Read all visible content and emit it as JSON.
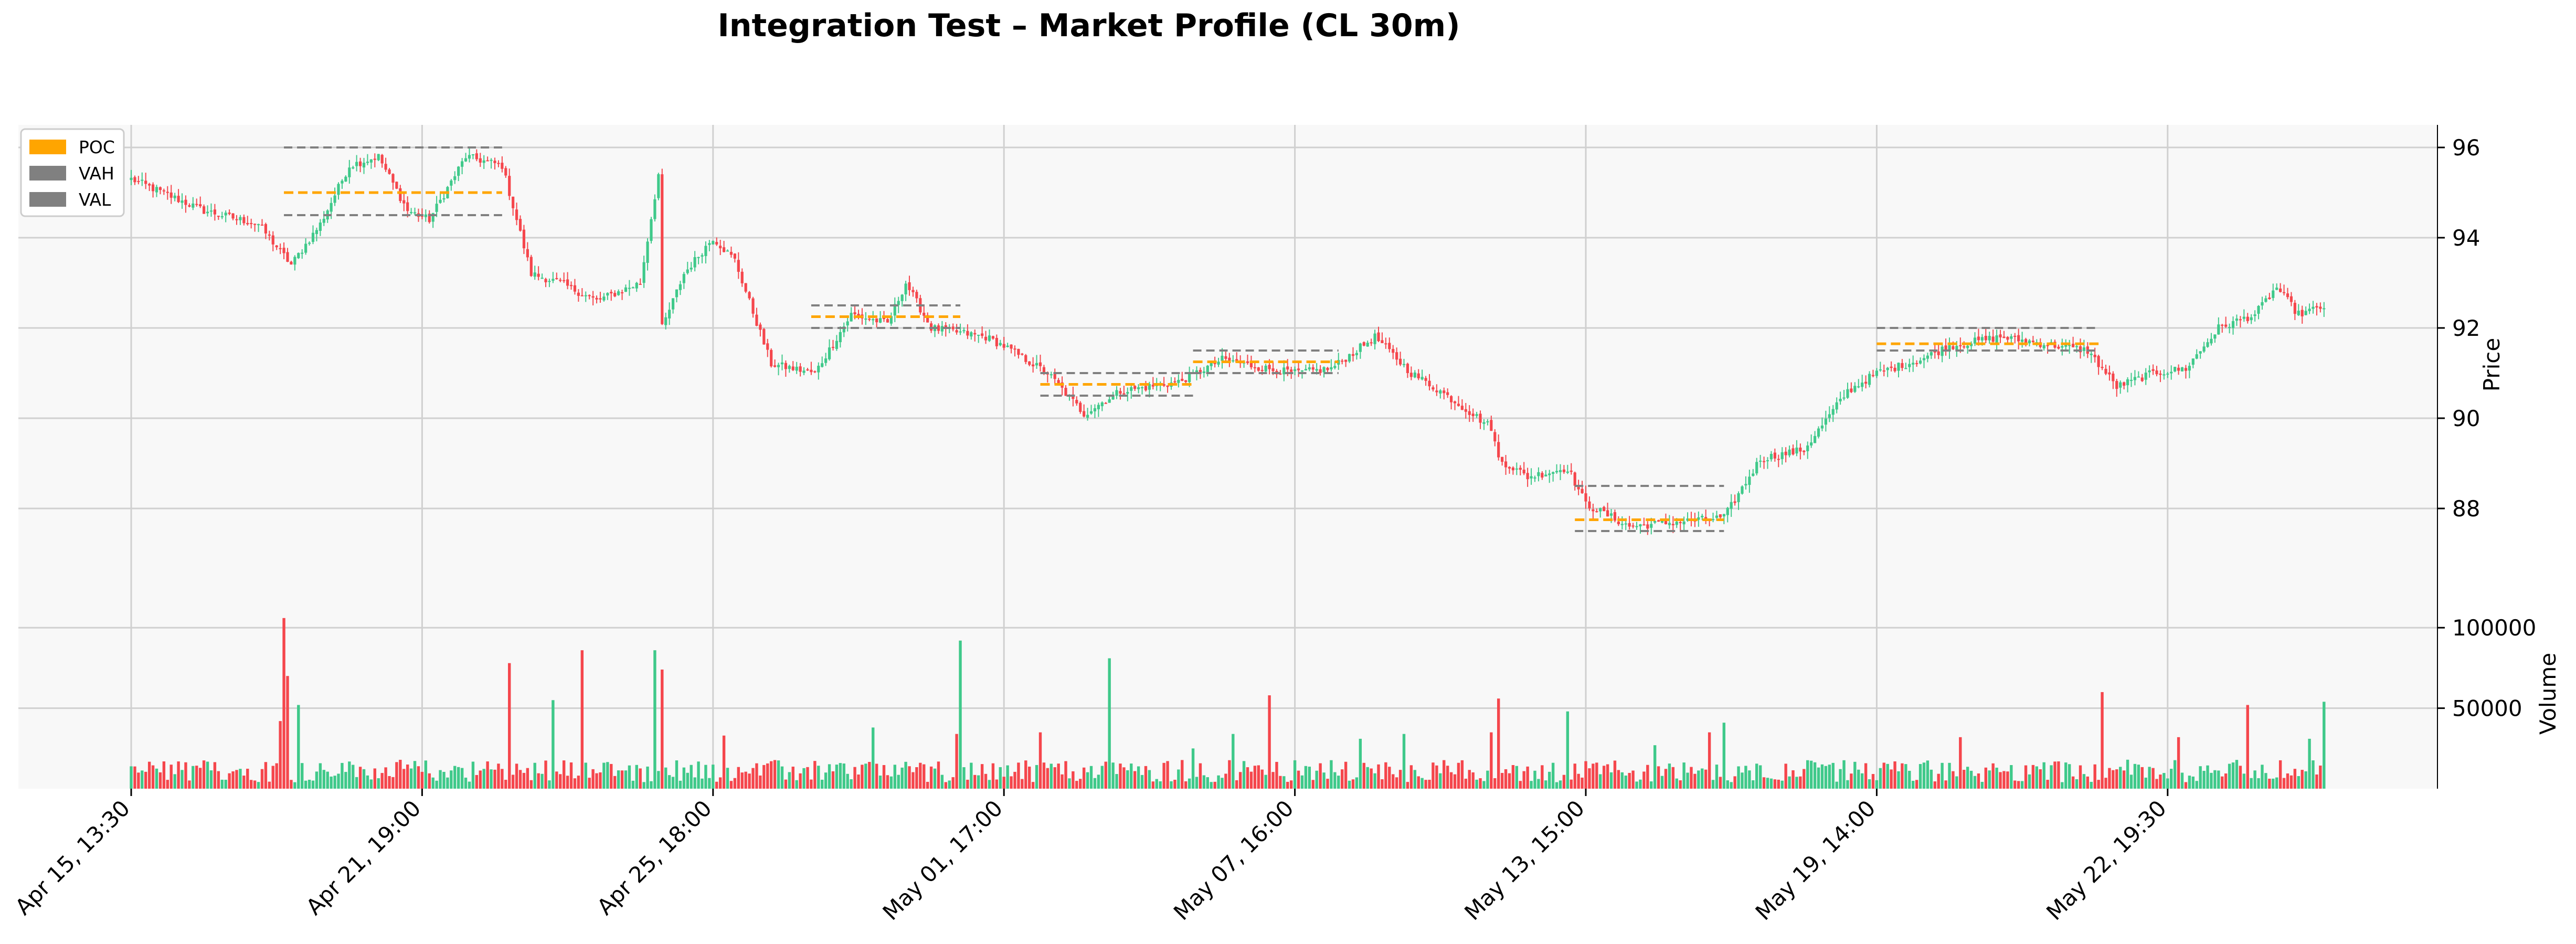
{
  "chart_data": {
    "type": "candlestick",
    "title": "Integration Test – Market Profile (CL 30m)",
    "price_axis": {
      "label": "Price",
      "ylim": [
        86.0,
        96.5
      ],
      "ticks": [
        88,
        90,
        92,
        94,
        96
      ],
      "side": "right"
    },
    "volume_axis": {
      "label": "Volume",
      "ylim": [
        0,
        118000
      ],
      "ticks": [
        50000,
        100000
      ],
      "side": "right"
    },
    "x_axis": {
      "tick_labels": [
        "Apr 15, 13:30",
        "Apr 21, 19:00",
        "Apr 25, 18:00",
        "May 01, 17:00",
        "May 07, 16:00",
        "May 13, 15:00",
        "May 19, 14:00",
        "May 22, 19:30"
      ],
      "tick_bar_index": [
        0,
        80,
        160,
        240,
        320,
        400,
        480,
        560
      ],
      "label_rotation": 45
    },
    "grid": true,
    "legend": {
      "placement": "top-left",
      "entries": [
        {
          "label": "POC",
          "color": "#ffa500"
        },
        {
          "label": "VAH",
          "color": "#808080"
        },
        {
          "label": "VAL",
          "color": "#808080"
        }
      ]
    },
    "colors": {
      "up": "#3fc98a",
      "down": "#f5464c",
      "poc": "#ffa500",
      "value_area": "#808080",
      "panel_bg": "#f8f8f8",
      "grid": "#d0d0d0"
    },
    "bar_count": 604,
    "anchors": [
      [
        0,
        95.3
      ],
      [
        20,
        94.6
      ],
      [
        35,
        94.3
      ],
      [
        44,
        93.4
      ],
      [
        52,
        94.3
      ],
      [
        60,
        95.6
      ],
      [
        68,
        95.8
      ],
      [
        76,
        94.6
      ],
      [
        82,
        94.4
      ],
      [
        92,
        95.8
      ],
      [
        102,
        95.6
      ],
      [
        110,
        93.2
      ],
      [
        118,
        93.0
      ],
      [
        128,
        92.6
      ],
      [
        140,
        93.0
      ],
      [
        145,
        95.4
      ],
      [
        146,
        92.0
      ],
      [
        152,
        93.2
      ],
      [
        160,
        94.0
      ],
      [
        166,
        93.5
      ],
      [
        176,
        91.2
      ],
      [
        188,
        91.0
      ],
      [
        198,
        92.3
      ],
      [
        208,
        92.1
      ],
      [
        213,
        93.0
      ],
      [
        220,
        92.0
      ],
      [
        235,
        91.8
      ],
      [
        240,
        91.6
      ],
      [
        252,
        91.0
      ],
      [
        262,
        90.1
      ],
      [
        272,
        90.6
      ],
      [
        288,
        90.8
      ],
      [
        300,
        91.3
      ],
      [
        312,
        91.1
      ],
      [
        320,
        91.0
      ],
      [
        330,
        91.1
      ],
      [
        342,
        91.8
      ],
      [
        352,
        91.0
      ],
      [
        360,
        90.6
      ],
      [
        374,
        89.8
      ],
      [
        376,
        89.1
      ],
      [
        384,
        88.7
      ],
      [
        395,
        88.9
      ],
      [
        400,
        88.1
      ],
      [
        412,
        87.6
      ],
      [
        425,
        87.7
      ],
      [
        438,
        87.8
      ],
      [
        448,
        89.1
      ],
      [
        460,
        89.3
      ],
      [
        472,
        90.6
      ],
      [
        480,
        91.0
      ],
      [
        492,
        91.3
      ],
      [
        500,
        91.6
      ],
      [
        514,
        91.8
      ],
      [
        522,
        91.7
      ],
      [
        538,
        91.5
      ],
      [
        546,
        90.7
      ],
      [
        556,
        91.0
      ],
      [
        565,
        91.1
      ],
      [
        574,
        92.0
      ],
      [
        584,
        92.3
      ],
      [
        590,
        92.9
      ],
      [
        596,
        92.3
      ],
      [
        604,
        92.5
      ]
    ],
    "volume_spikes": [
      [
        41,
        42000
      ],
      [
        42,
        106000
      ],
      [
        43,
        70000
      ],
      [
        46,
        52000
      ],
      [
        104,
        78000
      ],
      [
        116,
        55000
      ],
      [
        124,
        86000
      ],
      [
        144,
        86000
      ],
      [
        146,
        74000
      ],
      [
        163,
        33000
      ],
      [
        204,
        38000
      ],
      [
        227,
        34000
      ],
      [
        228,
        92000
      ],
      [
        250,
        35000
      ],
      [
        269,
        81000
      ],
      [
        292,
        25000
      ],
      [
        303,
        34000
      ],
      [
        313,
        58000
      ],
      [
        338,
        31000
      ],
      [
        350,
        34000
      ],
      [
        374,
        35000
      ],
      [
        376,
        56000
      ],
      [
        395,
        48000
      ],
      [
        419,
        27000
      ],
      [
        434,
        35000
      ],
      [
        438,
        41000
      ],
      [
        503,
        32000
      ],
      [
        542,
        60000
      ],
      [
        563,
        32000
      ],
      [
        582,
        52000
      ],
      [
        599,
        31000
      ],
      [
        603,
        54000
      ]
    ],
    "market_profiles": [
      {
        "start": 42,
        "end": 102,
        "vah": 96.0,
        "poc": 95.0,
        "val": 94.5
      },
      {
        "start": 187,
        "end": 228,
        "vah": 92.5,
        "poc": 92.25,
        "val": 92.0
      },
      {
        "start": 250,
        "end": 292,
        "vah": 91.0,
        "poc": 90.75,
        "val": 90.5
      },
      {
        "start": 292,
        "end": 332,
        "vah": 91.5,
        "poc": 91.25,
        "val": 91.0
      },
      {
        "start": 397,
        "end": 438,
        "vah": 88.5,
        "poc": 87.75,
        "val": 87.5
      },
      {
        "start": 480,
        "end": 541,
        "vah": 92.0,
        "poc": 91.65,
        "val": 91.5
      }
    ]
  }
}
